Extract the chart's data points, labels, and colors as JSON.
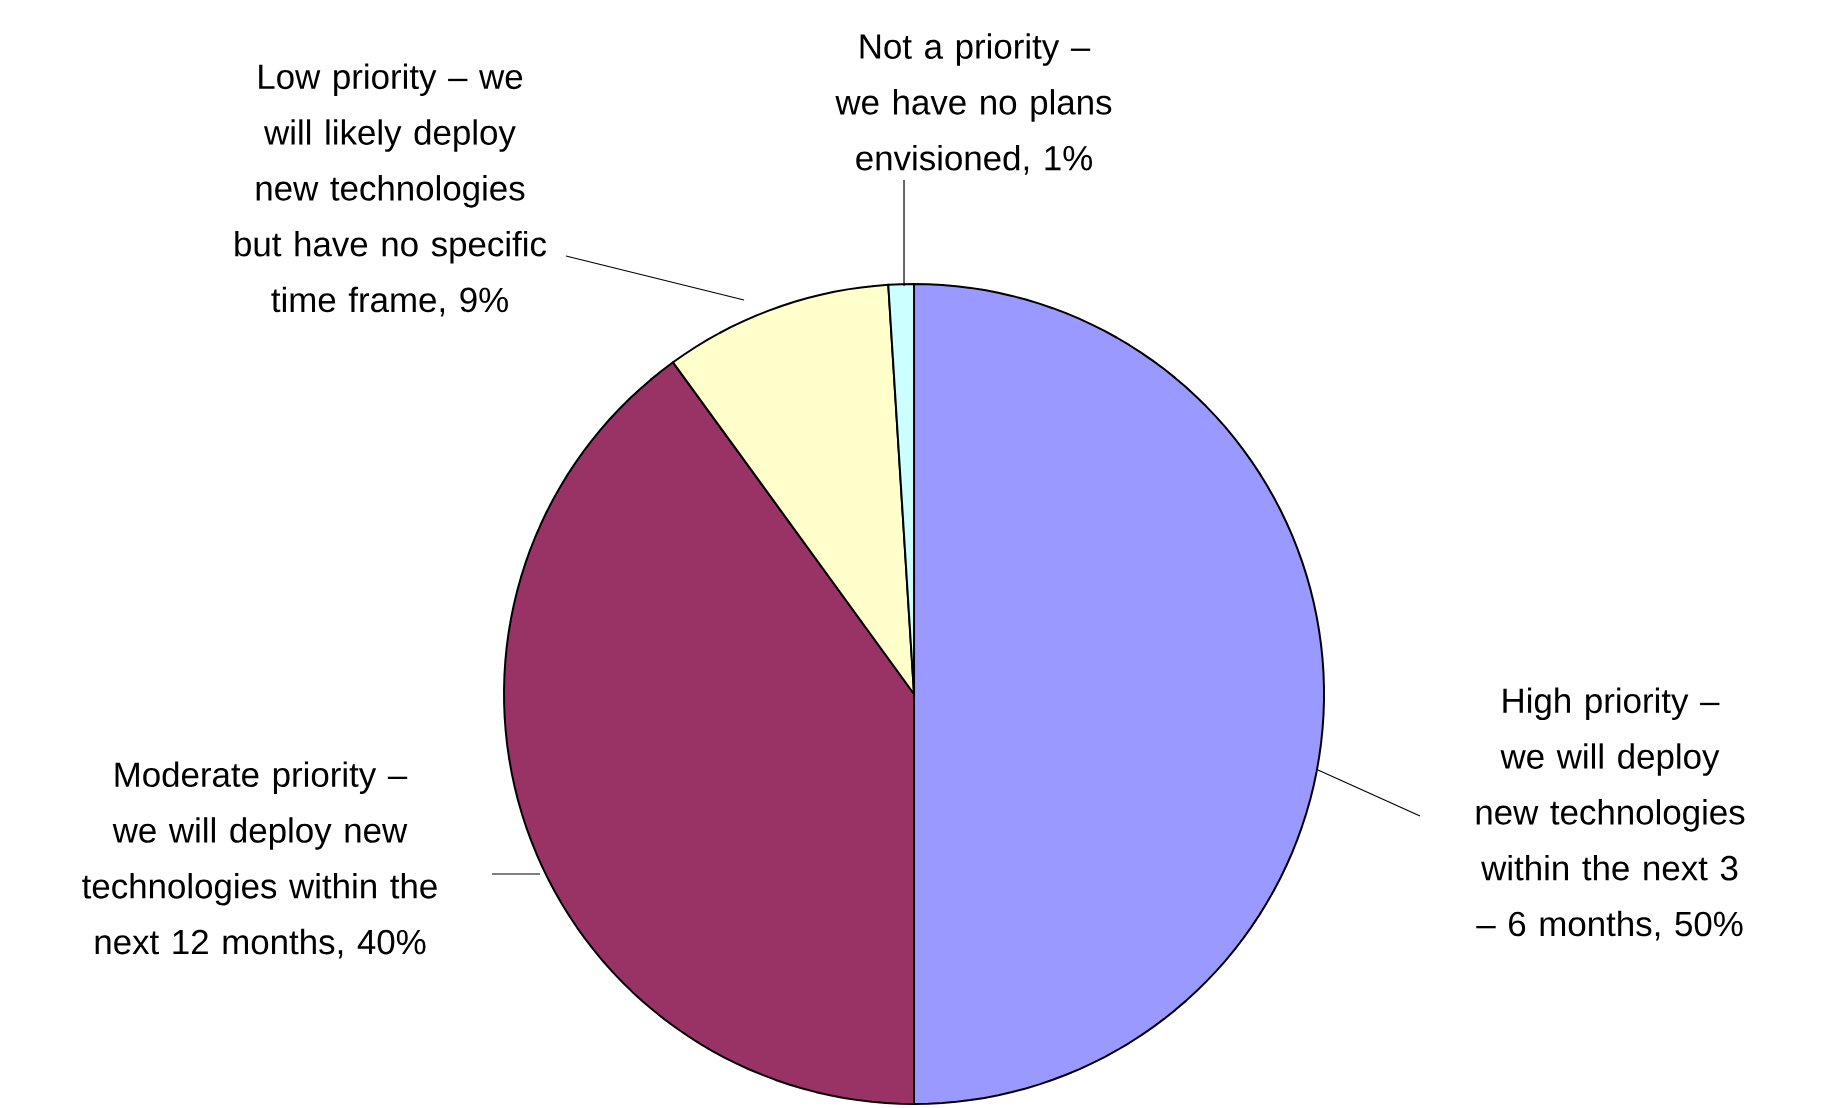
{
  "chart_data": {
    "type": "pie",
    "categories": [
      "High priority – we will deploy new technologies within the next 3 – 6 months",
      "Moderate priority – we will deploy new technologies within the next 12 months",
      "Low priority – we will likely deploy new technologies but have no specific time frame",
      "Not a priority – we have no plans envisioned"
    ],
    "values": [
      50,
      40,
      9,
      1
    ],
    "value_labels": [
      ", 50%",
      ", 40%",
      ", 9%",
      ", 1%"
    ],
    "colors": [
      "#9999ff",
      "#993366",
      "#ffffcc",
      "#ccffff"
    ]
  }
}
